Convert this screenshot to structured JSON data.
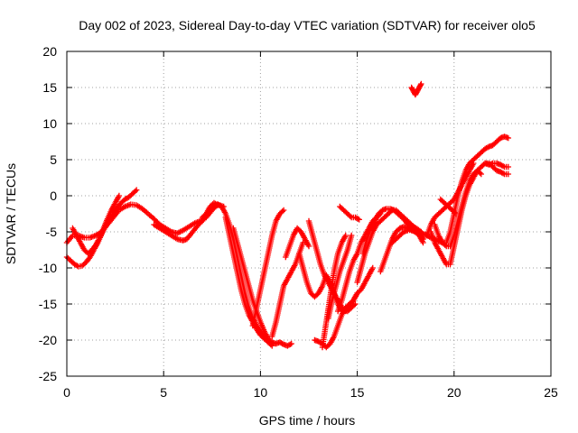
{
  "chart_data": {
    "type": "scatter",
    "title": "Day 002 of 2023, Sidereal Day-to-day VTEC variation (SDTVAR) for receiver olo5",
    "xlabel": "GPS time / hours",
    "ylabel": "SDTVAR / TECUs",
    "xlim": [
      0,
      25
    ],
    "ylim": [
      -25,
      20
    ],
    "x_ticks": [
      "0",
      "5",
      "10",
      "15",
      "20",
      "25"
    ],
    "y_ticks": [
      "-25",
      "-20",
      "-15",
      "-10",
      "-5",
      "0",
      "5",
      "10",
      "15",
      "20"
    ],
    "grid": true,
    "marker": "plus",
    "color": "#ff0000",
    "tracks": [
      {
        "x": [
          0.0,
          0.3,
          0.6,
          0.9,
          1.2,
          1.5,
          1.8,
          2.1,
          2.4,
          2.7,
          3.0,
          3.3,
          3.6,
          3.9,
          4.2,
          4.5,
          4.8,
          5.1,
          5.4,
          5.7,
          6.0,
          6.3,
          6.6,
          6.9,
          7.2,
          7.5,
          7.8,
          8.1
        ],
        "y": [
          -6.5,
          -5.5,
          -5.5,
          -5.8,
          -5.8,
          -5.5,
          -5.0,
          -4.0,
          -3.0,
          -2.0,
          -1.5,
          -1.2,
          -1.3,
          -1.8,
          -2.5,
          -3.2,
          -4.0,
          -4.5,
          -5.0,
          -5.2,
          -4.8,
          -4.3,
          -3.8,
          -3.5,
          -3.0,
          -2.0,
          -1.2,
          -1.5
        ]
      },
      {
        "x": [
          0.0,
          0.2,
          0.4,
          0.6,
          0.8,
          1.0,
          1.2,
          1.4,
          1.6,
          1.8,
          2.0,
          2.2,
          2.4,
          2.6,
          2.8,
          3.0,
          3.2,
          3.4,
          3.6
        ],
        "y": [
          -8.5,
          -9.0,
          -9.5,
          -9.8,
          -9.7,
          -9.2,
          -8.5,
          -7.5,
          -6.5,
          -5.3,
          -4.2,
          -3.3,
          -2.5,
          -1.7,
          -1.0,
          -0.5,
          -0.2,
          0.3,
          0.8
        ]
      },
      {
        "x": [
          0.3,
          0.5,
          0.7,
          0.9,
          1.1,
          1.3,
          1.5,
          1.7,
          1.9,
          2.1,
          2.3,
          2.5,
          2.7
        ],
        "y": [
          -4.5,
          -5.5,
          -6.5,
          -7.5,
          -8.0,
          -7.5,
          -6.8,
          -5.8,
          -4.5,
          -3.2,
          -2.0,
          -1.0,
          0.0
        ]
      },
      {
        "x": [
          4.5,
          4.8,
          5.1,
          5.4,
          5.7,
          6.0,
          6.2,
          6.5,
          6.8,
          7.0,
          7.2,
          7.4,
          7.6,
          7.8
        ],
        "y": [
          -4.0,
          -4.5,
          -5.0,
          -5.5,
          -6.0,
          -6.2,
          -6.0,
          -5.0,
          -4.0,
          -3.5,
          -2.5,
          -1.5,
          -1.0,
          -1.3
        ]
      },
      {
        "x": [
          7.0,
          7.2,
          7.4,
          7.6,
          7.8,
          8.0,
          8.2,
          8.4,
          8.6,
          8.8,
          9.0,
          9.2,
          9.4,
          9.6,
          9.8,
          10.0,
          10.2,
          10.4,
          10.6,
          10.8,
          11.0,
          11.2,
          11.4,
          11.6
        ],
        "y": [
          -3.0,
          -2.5,
          -2.0,
          -1.5,
          -1.2,
          -1.5,
          -2.5,
          -4.0,
          -6.0,
          -8.5,
          -11.0,
          -13.5,
          -15.5,
          -17.0,
          -18.0,
          -18.8,
          -19.5,
          -20.0,
          -20.3,
          -20.5,
          -20.3,
          -20.6,
          -20.8,
          -20.5
        ]
      },
      {
        "x": [
          8.2,
          8.4,
          8.6,
          8.8,
          9.0,
          9.2,
          9.4,
          9.6,
          9.8,
          10.0,
          10.2,
          10.4,
          10.6
        ],
        "y": [
          -3.0,
          -5.5,
          -8.0,
          -10.5,
          -13.0,
          -15.0,
          -16.5,
          -17.5,
          -18.5,
          -19.3,
          -19.8,
          -20.3,
          -20.8
        ]
      },
      {
        "x": [
          8.6,
          8.8,
          9.0,
          9.2,
          9.4,
          9.6,
          9.8,
          10.0,
          10.2,
          10.4
        ],
        "y": [
          -4.5,
          -6.5,
          -8.5,
          -10.5,
          -12.5,
          -14.5,
          -16.0,
          -17.5,
          -18.8,
          -19.8
        ]
      },
      {
        "x": [
          9.6,
          9.8,
          10.0,
          10.2,
          10.4,
          10.6,
          10.8,
          11.0,
          11.2
        ],
        "y": [
          -18.0,
          -15.5,
          -13.0,
          -10.5,
          -8.0,
          -5.5,
          -3.5,
          -2.5,
          -2.0
        ]
      },
      {
        "x": [
          10.6,
          10.8,
          11.0,
          11.2,
          11.4,
          11.6,
          11.8,
          12.0,
          12.2
        ],
        "y": [
          -19.5,
          -17.5,
          -15.0,
          -12.5,
          -11.5,
          -10.5,
          -9.5,
          -8.0,
          -6.5
        ]
      },
      {
        "x": [
          11.3,
          11.5,
          11.7,
          11.9,
          12.1,
          12.3,
          12.5
        ],
        "y": [
          -8.5,
          -7.0,
          -5.5,
          -4.5,
          -5.0,
          -6.0,
          -7.0
        ]
      },
      {
        "x": [
          12.0,
          12.2,
          12.4,
          12.6,
          12.8,
          13.0,
          13.2,
          13.4,
          13.6,
          13.8,
          14.0,
          14.2,
          14.4,
          14.6,
          14.8,
          15.0
        ],
        "y": [
          -8.0,
          -10.0,
          -12.0,
          -13.5,
          -14.0,
          -13.5,
          -12.5,
          -11.0,
          -12.0,
          -13.5,
          -15.0,
          -16.0,
          -16.0,
          -15.0,
          -14.5,
          -13.5
        ]
      },
      {
        "x": [
          12.5,
          12.7,
          12.9,
          13.1,
          13.3,
          13.5,
          13.7,
          13.9,
          14.1,
          14.3,
          14.5,
          14.7,
          14.9
        ],
        "y": [
          -3.5,
          -5.5,
          -7.5,
          -9.5,
          -11.0,
          -12.0,
          -13.0,
          -14.0,
          -15.0,
          -15.8,
          -16.0,
          -15.5,
          -15.0
        ]
      },
      {
        "x": [
          12.8,
          13.0,
          13.2,
          13.4,
          13.6,
          13.8,
          14.0,
          14.2,
          14.4,
          14.6,
          14.8,
          15.0,
          15.2,
          15.4,
          15.6,
          15.8
        ],
        "y": [
          -20.0,
          -20.2,
          -20.5,
          -21.0,
          -20.5,
          -19.5,
          -18.0,
          -16.5,
          -15.5,
          -15.0,
          -14.5,
          -13.5,
          -13.0,
          -12.0,
          -11.0,
          -10.0
        ]
      },
      {
        "x": [
          13.2,
          13.4,
          13.6,
          13.8,
          14.0,
          14.2,
          14.4
        ],
        "y": [
          -21.0,
          -17.5,
          -14.0,
          -10.5,
          -8.0,
          -6.5,
          -5.5
        ]
      },
      {
        "x": [
          13.5,
          13.7,
          13.9,
          14.1,
          14.3,
          14.5,
          14.7
        ],
        "y": [
          -17.0,
          -14.5,
          -12.5,
          -10.5,
          -9.0,
          -7.5,
          -5.5
        ]
      },
      {
        "x": [
          14.0,
          14.2,
          14.4,
          14.6,
          14.8,
          15.0,
          15.2,
          15.4,
          15.6,
          15.8,
          16.0,
          16.2
        ],
        "y": [
          -16.0,
          -14.5,
          -12.5,
          -10.5,
          -9.0,
          -8.0,
          -6.5,
          -5.5,
          -4.5,
          -3.5,
          -3.0,
          -2.5
        ]
      },
      {
        "x": [
          14.1,
          14.3,
          14.5,
          14.7,
          14.9,
          15.1
        ],
        "y": [
          -1.5,
          -2.0,
          -2.5,
          -3.0,
          -3.0,
          -3.3
        ]
      },
      {
        "x": [
          15.0,
          15.2,
          15.4,
          15.6,
          15.8,
          16.0,
          16.2,
          16.4,
          16.6,
          16.8,
          17.0,
          17.2,
          17.4,
          17.6,
          17.8,
          18.0,
          18.2,
          18.4
        ],
        "y": [
          -12.0,
          -10.0,
          -8.0,
          -6.5,
          -5.0,
          -4.0,
          -3.5,
          -3.0,
          -2.5,
          -2.0,
          -2.0,
          -2.5,
          -3.0,
          -4.0,
          -4.5,
          -5.0,
          -5.5,
          -6.0
        ]
      },
      {
        "x": [
          15.3,
          15.5,
          15.7,
          15.9,
          16.1,
          16.3,
          16.5,
          16.7,
          16.9,
          17.1,
          17.3,
          17.5,
          17.7,
          17.9,
          18.1,
          18.3
        ],
        "y": [
          -8.0,
          -6.0,
          -4.5,
          -3.5,
          -2.5,
          -2.0,
          -1.8,
          -1.8,
          -2.0,
          -2.5,
          -3.0,
          -3.5,
          -4.0,
          -4.3,
          -4.6,
          -5.0
        ]
      },
      {
        "x": [
          16.2,
          16.4,
          16.6,
          16.8,
          17.0,
          17.2,
          17.4,
          17.6,
          17.8,
          18.0,
          18.2,
          18.4
        ],
        "y": [
          -10.5,
          -9.0,
          -7.5,
          -6.0,
          -5.0,
          -4.5,
          -4.3,
          -4.5,
          -4.8,
          -5.0,
          -5.3,
          -6.0
        ]
      },
      {
        "x": [
          16.8,
          17.0,
          17.2,
          17.4,
          17.6,
          17.8,
          18.0,
          18.2,
          18.4
        ],
        "y": [
          -6.5,
          -6.0,
          -5.5,
          -5.0,
          -4.8,
          -4.7,
          -5.0,
          -5.5,
          -6.5
        ]
      },
      {
        "x": [
          17.4,
          17.6,
          17.8,
          18.0,
          18.2,
          18.4,
          18.6,
          18.8,
          19.0,
          19.2,
          19.4,
          19.6,
          19.8,
          20.0,
          20.2,
          20.4,
          20.6,
          20.8,
          21.0,
          21.2,
          21.4,
          21.6,
          21.8,
          22.0,
          22.2,
          22.4,
          22.6,
          22.8
        ],
        "y": [
          -3.0,
          -3.5,
          -4.0,
          -4.5,
          -5.0,
          -5.3,
          -5.5,
          -5.8,
          -6.0,
          -6.3,
          -6.5,
          -6.5,
          -5.0,
          -2.5,
          0.0,
          2.0,
          3.5,
          4.5,
          5.0,
          5.5,
          6.0,
          6.5,
          6.8,
          7.0,
          7.5,
          8.0,
          8.2,
          8.0
        ]
      },
      {
        "x": [
          18.6,
          18.8,
          19.0,
          19.2,
          19.4,
          19.6,
          19.8,
          20.0,
          20.2,
          20.4,
          20.6,
          20.8,
          21.0
        ],
        "y": [
          -5.5,
          -4.0,
          -3.0,
          -2.5,
          -2.0,
          -1.5,
          -1.0,
          -0.5,
          0.5,
          1.5,
          2.5,
          3.5,
          4.5
        ]
      },
      {
        "x": [
          18.8,
          19.0,
          19.2,
          19.4,
          19.6,
          19.8,
          20.0,
          20.2,
          20.4,
          20.6,
          20.8,
          21.0,
          21.2,
          21.4,
          21.6,
          21.8,
          22.0,
          22.2,
          22.4,
          22.6,
          22.8
        ],
        "y": [
          -5.0,
          -6.5,
          -7.5,
          -8.5,
          -9.5,
          -9.5,
          -7.0,
          -4.5,
          -2.0,
          0.0,
          1.5,
          2.5,
          3.5,
          4.0,
          4.5,
          4.5,
          4.0,
          3.5,
          3.3,
          3.0,
          3.0
        ]
      },
      {
        "x": [
          19.0,
          19.2,
          19.4,
          19.6,
          19.8,
          20.0,
          20.2,
          20.4,
          20.6,
          20.8,
          21.0,
          21.2,
          21.4
        ],
        "y": [
          -4.0,
          -5.5,
          -6.5,
          -7.0,
          -7.0,
          -5.5,
          -3.5,
          -1.5,
          0.5,
          2.0,
          3.0,
          3.5,
          3.0
        ]
      },
      {
        "x": [
          19.3,
          19.5,
          19.7,
          19.9,
          20.1
        ],
        "y": [
          -0.5,
          -1.0,
          -1.5,
          -2.0,
          -2.5
        ]
      },
      {
        "x": [
          21.6,
          21.8,
          22.0,
          22.2,
          22.4,
          22.6,
          22.8
        ],
        "y": [
          4.5,
          4.3,
          4.5,
          4.5,
          4.3,
          4.0,
          4.0
        ]
      },
      {
        "x": [
          17.8,
          17.9,
          18.0,
          18.1,
          18.2,
          18.3
        ],
        "y": [
          15.0,
          14.5,
          14.0,
          14.5,
          15.0,
          15.5
        ]
      }
    ]
  }
}
